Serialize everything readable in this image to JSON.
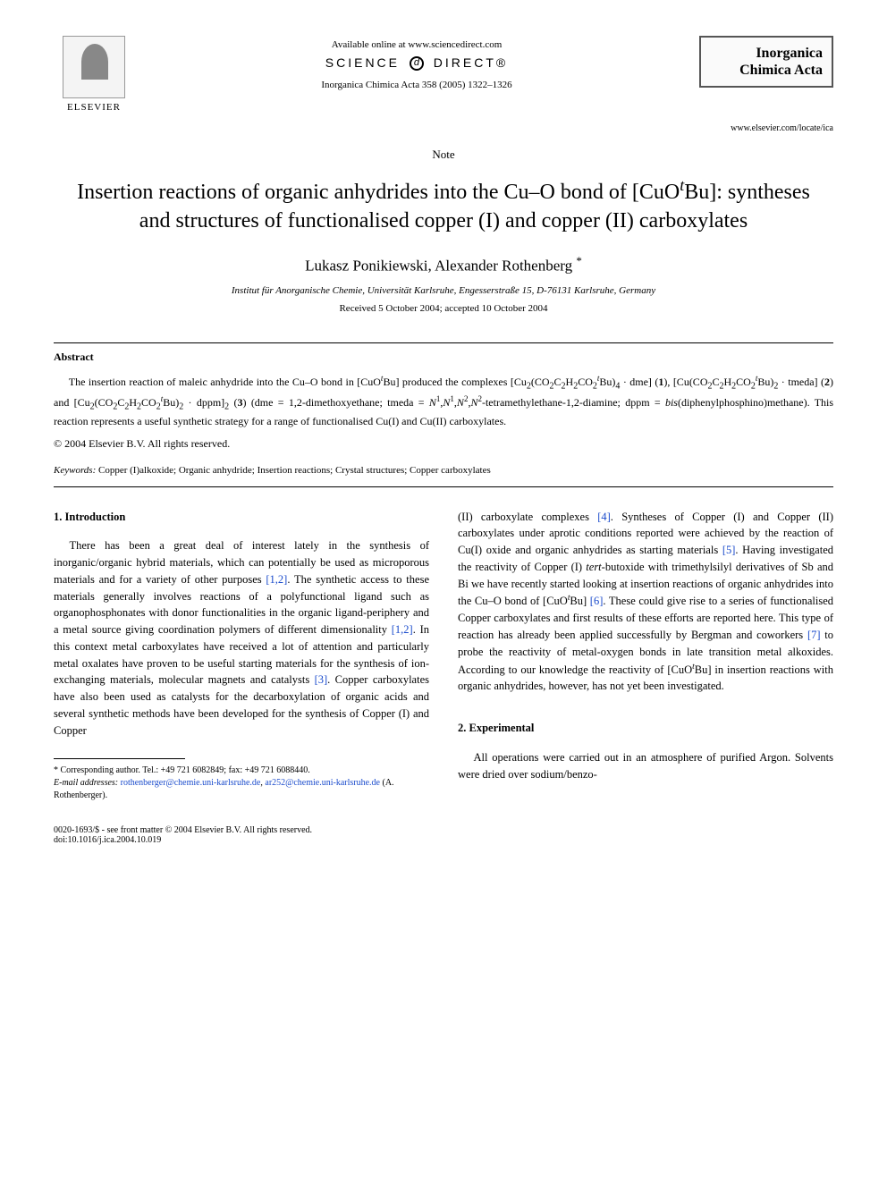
{
  "header": {
    "publisher_name": "ELSEVIER",
    "available_online": "Available online at www.sciencedirect.com",
    "science_direct_left": "SCIENCE",
    "science_direct_right": "DIRECT®",
    "journal_ref": "Inorganica Chimica Acta 358 (2005) 1322–1326",
    "journal_box_line1": "Inorganica",
    "journal_box_line2": "Chimica Acta",
    "journal_url": "www.elsevier.com/locate/ica"
  },
  "article": {
    "note_label": "Note",
    "title_html": "Insertion reactions of organic anhydrides into the Cu–O bond of [CuO<sup><i>t</i></sup>Bu]: syntheses and structures of functionalised copper (I) and copper (II) carboxylates",
    "authors": "Lukasz Ponikiewski, Alexander Rothenberg",
    "corr_mark": "*",
    "affiliation": "Institut für Anorganische Chemie, Universität Karlsruhe, Engesserstraße 15, D-76131 Karlsruhe, Germany",
    "received": "Received 5 October 2004; accepted 10 October 2004"
  },
  "abstract": {
    "heading": "Abstract",
    "body_html": "The insertion reaction of maleic anhydride into the Cu–O bond in [CuO<sup><i>t</i></sup>Bu] produced the complexes [Cu<sub>2</sub>(CO<sub>2</sub>C<sub>2</sub>H<sub>2</sub>CO<sub>2</sub><sup><i>t</i></sup>Bu)<sub>4</sub> · dme] (<b>1</b>), [Cu(CO<sub>2</sub>C<sub>2</sub>H<sub>2</sub>CO<sub>2</sub><sup><i>t</i></sup>Bu)<sub>2</sub> · tmeda] (<b>2</b>) and [Cu<sub>2</sub>(CO<sub>2</sub>C<sub>2</sub>H<sub>2</sub>CO<sub>2</sub><sup><i>t</i></sup>Bu)<sub>2</sub> · dppm]<sub>2</sub> (<b>3</b>) (dme = 1,2-dimethoxyethane; tmeda = <i>N</i><sup>1</sup>,<i>N</i><sup>1</sup>,<i>N</i><sup>2</sup>,<i>N</i><sup>2</sup>-tetramethylethane-1,2-diamine; dppm = <i>bis</i>(diphenylphosphino)methane). This reaction represents a useful synthetic strategy for a range of functionalised Cu(I) and Cu(II) carboxylates.",
    "copyright": "© 2004 Elsevier B.V. All rights reserved.",
    "keywords_label": "Keywords:",
    "keywords": "Copper (I)alkoxide; Organic anhydride; Insertion reactions; Crystal structures; Copper carboxylates"
  },
  "body": {
    "section1_heading": "1. Introduction",
    "col1_para1_html": "There has been a great deal of interest lately in the synthesis of inorganic/organic hybrid materials, which can potentially be used as microporous materials and for a variety of other purposes <span class=\"cite\">[1,2]</span>. The synthetic access to these materials generally involves reactions of a polyfunctional ligand such as organophosphonates with donor functionalities in the organic ligand-periphery and a metal source giving coordination polymers of different dimensionality <span class=\"cite\">[1,2]</span>. In this context metal carboxylates have received a lot of attention and particularly metal oxalates have proven to be useful starting materials for the synthesis of ion-exchanging materials, molecular magnets and catalysts <span class=\"cite\">[3]</span>. Copper carboxylates have also been used as catalysts for the decarboxylation of organic acids and several synthetic methods have been developed for the synthesis of Copper (I) and Copper",
    "col2_para1_html": "(II) carboxylate complexes <span class=\"cite\">[4]</span>. Syntheses of Copper (I) and Copper (II) carboxylates under aprotic conditions reported were achieved by the reaction of Cu(I) oxide and organic anhydrides as starting materials <span class=\"cite\">[5]</span>. Having investigated the reactivity of Copper (I) <i>tert</i>-butoxide with trimethylsilyl derivatives of Sb and Bi we have recently started looking at insertion reactions of organic anhydrides into the Cu–O bond of [CuO<sup><i>t</i></sup>Bu] <span class=\"cite\">[6]</span>. These could give rise to a series of functionalised Copper carboxylates and first results of these efforts are reported here. This type of reaction has already been applied successfully by Bergman and coworkers <span class=\"cite\">[7]</span> to probe the reactivity of metal-oxygen bonds in late transition metal alkoxides. According to our knowledge the reactivity of [CuO<sup><i>t</i></sup>Bu] in insertion reactions with organic anhydrides, however, has not yet been investigated.",
    "section2_heading": "2. Experimental",
    "col2_para2": "All operations were carried out in an atmosphere of purified Argon. Solvents were dried over sodium/benzo-"
  },
  "footnote": {
    "corr_author": "* Corresponding author. Tel.: +49 721 6082849; fax: +49 721 6088440.",
    "email_label": "E-mail addresses:",
    "email1": "rothenberger@chemie.uni-karlsruhe.de",
    "email_sep": ",",
    "email2": "ar252@chemie.uni-karlsruhe.de",
    "email_tail": "(A. Rothenberger)."
  },
  "footer": {
    "left_line1": "0020-1693/$ - see front matter © 2004 Elsevier B.V. All rights reserved.",
    "left_line2": "doi:10.1016/j.ica.2004.10.019"
  },
  "colors": {
    "link": "#1a4bcc",
    "text": "#000000",
    "background": "#ffffff"
  }
}
